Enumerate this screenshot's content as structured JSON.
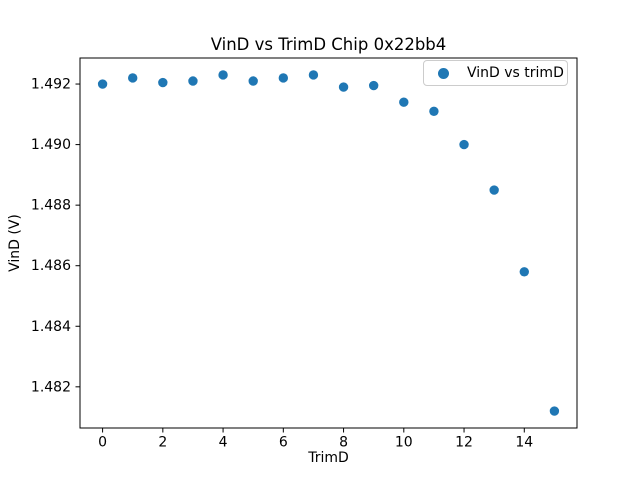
{
  "chart_data": {
    "type": "scatter",
    "title": "VinD vs TrimD Chip 0x22bb4",
    "xlabel": "TrimD",
    "ylabel": "VinD (V)",
    "legend": [
      {
        "label": "VinD vs trimD",
        "marker": "circle-icon",
        "color": "#1f77b4"
      }
    ],
    "legend_position": "upper right",
    "marker_color": "#1f77b4",
    "x": [
      0,
      1,
      2,
      3,
      4,
      5,
      6,
      7,
      8,
      9,
      10,
      11,
      12,
      13,
      14,
      15
    ],
    "y": [
      1.492,
      1.4922,
      1.49205,
      1.4921,
      1.4923,
      1.4921,
      1.4922,
      1.4923,
      1.4919,
      1.49195,
      1.4914,
      1.4911,
      1.49,
      1.4885,
      1.4858,
      1.4812
    ],
    "xlim": [
      -0.75,
      15.75
    ],
    "ylim": [
      1.48064,
      1.49286
    ],
    "xticks": [
      0,
      2,
      4,
      6,
      8,
      10,
      12,
      14
    ],
    "yticks": [
      1.482,
      1.484,
      1.486,
      1.488,
      1.49,
      1.492
    ],
    "ytick_decimals": 3,
    "grid": false,
    "axes_color": "#000000",
    "background_color": "#ffffff"
  }
}
